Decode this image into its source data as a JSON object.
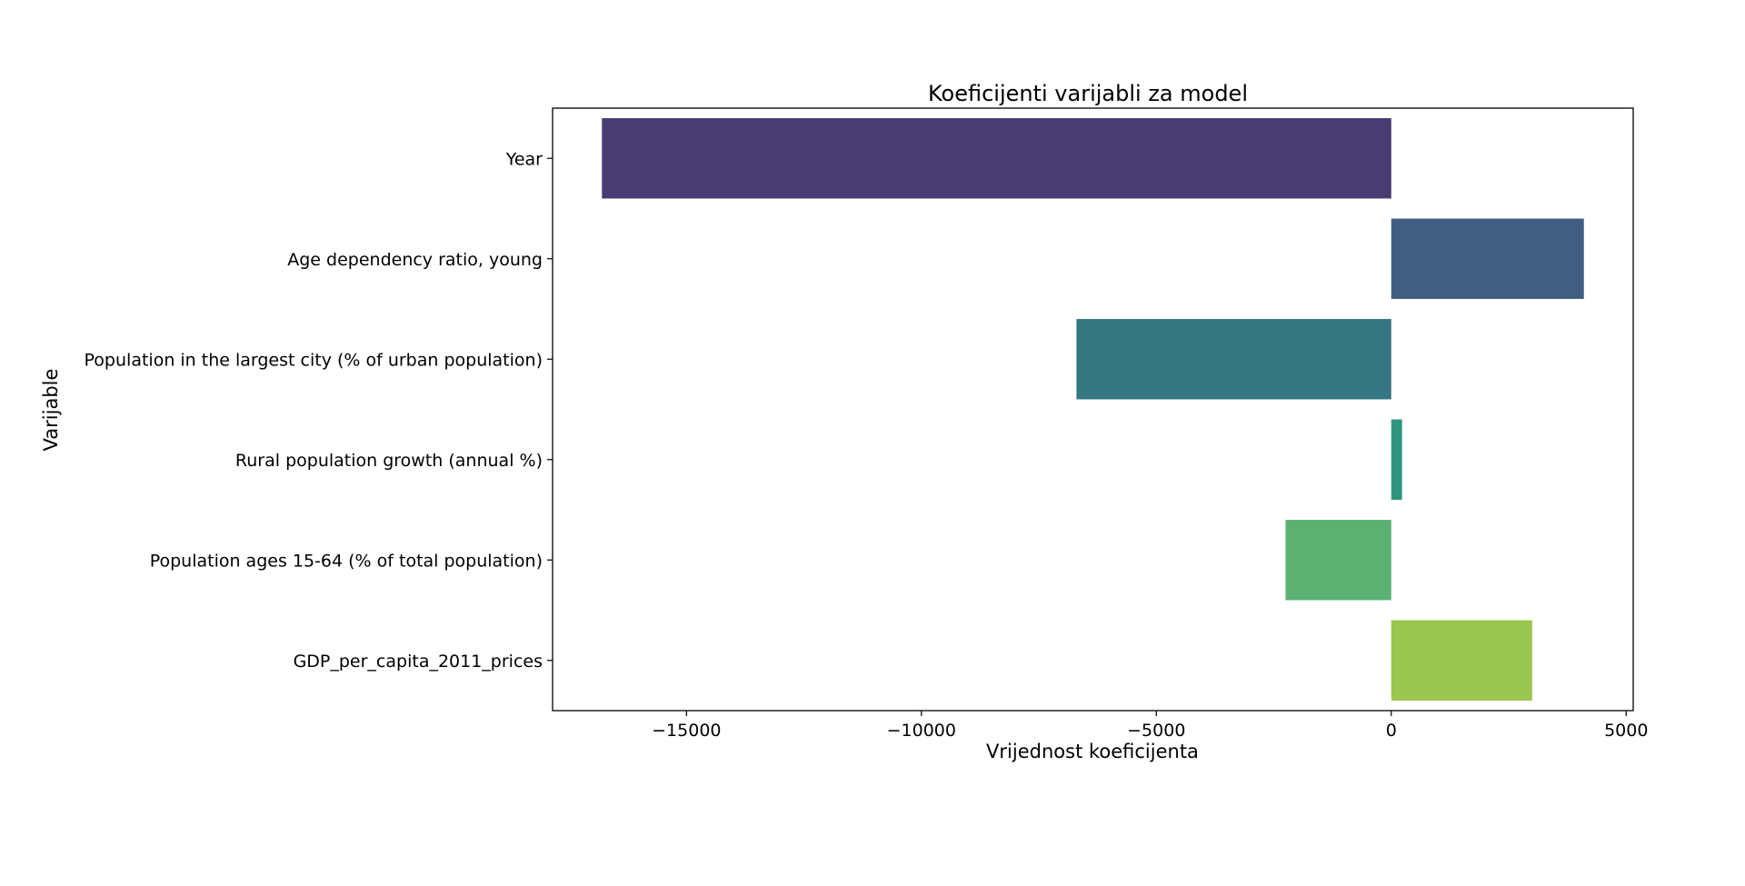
{
  "chart_data": {
    "type": "bar",
    "orientation": "horizontal",
    "title": "Koeficijenti varijabli za model",
    "xlabel": "Vrijednost koeficijenta",
    "ylabel": "Varijable",
    "categories": [
      "Year",
      "Age dependency ratio, young",
      "Population in the largest city (% of urban population)",
      "Rural population growth (annual %)",
      "Population ages 15-64 (% of total population)",
      "GDP_per_capita_2011_prices"
    ],
    "values": [
      -16800,
      4100,
      -6700,
      230,
      -2250,
      3000
    ],
    "colors": [
      "#4a3b73",
      "#415d81",
      "#357681",
      "#2e957e",
      "#5bb172",
      "#99c64f"
    ],
    "xlim": [
      -17850,
      5150
    ],
    "xticks": [
      -15000,
      -10000,
      -5000,
      0,
      5000
    ],
    "xtick_labels": [
      "−15000",
      "−10000",
      "−5000",
      "0",
      "5000"
    ],
    "grid": false,
    "legend": "none"
  }
}
